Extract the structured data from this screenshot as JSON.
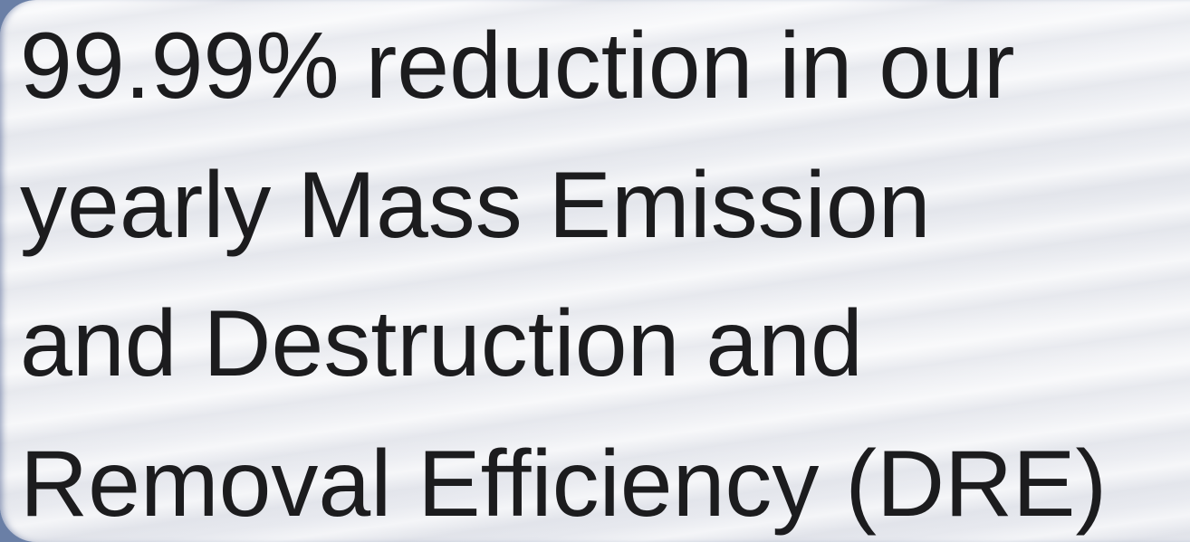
{
  "text": {
    "lines": [
      "99.99% reduction in our",
      "yearly Mass Emission",
      "and Destruction and",
      "Removal Efficiency (DRE)"
    ]
  }
}
